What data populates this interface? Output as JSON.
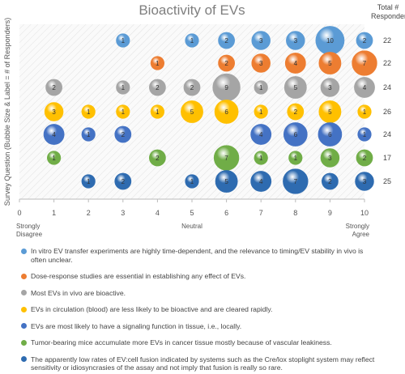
{
  "chart_data": {
    "type": "bubble",
    "title": "Bioactivity of EVs",
    "y_label": "Survey Question (Bubble Size & Label = # of Responders)",
    "total_label": "Total # Responders",
    "xlim": [
      0,
      10
    ],
    "xticks": [
      0,
      1,
      2,
      3,
      4,
      5,
      6,
      7,
      8,
      9,
      10
    ],
    "x_annotations": [
      {
        "x": 0,
        "text": "Strongly Disagree"
      },
      {
        "x": 5,
        "text": "Neutral"
      },
      {
        "x": 10,
        "text": "Strongly Agree"
      }
    ],
    "series": [
      {
        "name": "In vitro EV transfer experiments are highly time-dependent, and the relevance to timing/EV stability in vivo is often unclear.",
        "color": "#5b9bd5",
        "x": [
          3,
          5,
          6,
          7,
          8,
          9,
          10
        ],
        "values": [
          1,
          1,
          2,
          3,
          3,
          10,
          2
        ],
        "total": 22
      },
      {
        "name": "Dose-response studies are essential in establishing any effect of EVs.",
        "color": "#ed7d31",
        "x": [
          4,
          6,
          7,
          8,
          9,
          10
        ],
        "values": [
          1,
          2,
          3,
          4,
          5,
          7
        ],
        "total": 22
      },
      {
        "name": "Most EVs in vivo are bioactive.",
        "color": "#a5a5a5",
        "x": [
          1,
          3,
          4,
          5,
          6,
          7,
          8,
          9,
          10
        ],
        "values": [
          2,
          1,
          2,
          2,
          9,
          1,
          5,
          3,
          4
        ],
        "total": 24
      },
      {
        "name": "EVs in circulation (blood) are less likely to be bioactive and are cleared rapidly.",
        "color": "#ffc000",
        "x": [
          1,
          2,
          3,
          4,
          5,
          6,
          7,
          8,
          9,
          10
        ],
        "values": [
          3,
          1,
          1,
          1,
          5,
          6,
          1,
          2,
          5,
          1
        ],
        "total": 26
      },
      {
        "name": "EVs are most likely to have a signaling function in tissue, i.e., locally.",
        "color": "#4472c4",
        "x": [
          1,
          2,
          3,
          7,
          8,
          9,
          10
        ],
        "values": [
          4,
          1,
          2,
          4,
          6,
          6,
          1
        ],
        "total": 24
      },
      {
        "name": "Tumor-bearing mice accumulate more EVs in cancer tissue mostly because of vascular leakiness.",
        "color": "#70ad47",
        "x": [
          1,
          4,
          6,
          7,
          8,
          9,
          10
        ],
        "values": [
          1,
          2,
          7,
          1,
          1,
          3,
          2
        ],
        "total": 17
      },
      {
        "name": "The apparently low rates of EV:cell fusion indicated by systems such as the Cre/lox stoplight system may reflect sensitivity or idiosyncrasies of the assay and not imply that fusion is really so rare.",
        "color": "#2e6bb0",
        "x": [
          2,
          3,
          5,
          6,
          7,
          8,
          9,
          10
        ],
        "values": [
          1,
          2,
          1,
          5,
          4,
          7,
          2,
          3
        ],
        "total": 25
      }
    ]
  }
}
